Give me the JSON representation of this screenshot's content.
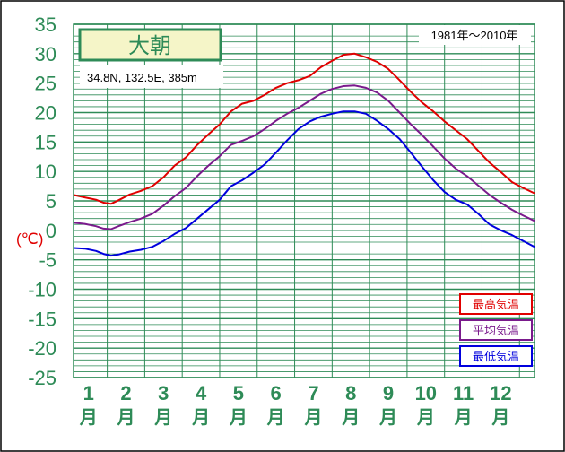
{
  "station": {
    "name": "大朝",
    "location": "34.8N,  132.5E,  385m",
    "period": "1981年〜2010年"
  },
  "y_axis_unit": "(℃)",
  "colors": {
    "grid": "#2e8b57",
    "axis_text": "#2e8b57",
    "unit_text": "#e00000",
    "max": "#e00000",
    "mean": "#7a1a8c",
    "min": "#0000dd",
    "title_bg": "#f5f5c8"
  },
  "chart_data": {
    "type": "line",
    "title": "大朝",
    "xlabel": "",
    "ylabel": "(℃)",
    "ylim": [
      -25,
      35
    ],
    "ytick_step": 5,
    "x_categories": [
      {
        "num": "1",
        "unit": "月"
      },
      {
        "num": "2",
        "unit": "月"
      },
      {
        "num": "3",
        "unit": "月"
      },
      {
        "num": "4",
        "unit": "月"
      },
      {
        "num": "5",
        "unit": "月"
      },
      {
        "num": "6",
        "unit": "月"
      },
      {
        "num": "7",
        "unit": "月"
      },
      {
        "num": "8",
        "unit": "月"
      },
      {
        "num": "9",
        "unit": "月"
      },
      {
        "num": "10",
        "unit": "月"
      },
      {
        "num": "11",
        "unit": "月"
      },
      {
        "num": "12",
        "unit": "月"
      }
    ],
    "x_range_months": [
      0.1,
      12.4
    ],
    "grid": true,
    "legend_position": "bottom-right",
    "series": [
      {
        "name": "最高気温",
        "color": "#e00000",
        "points": [
          [
            0.1,
            6.0
          ],
          [
            0.4,
            5.6
          ],
          [
            0.7,
            5.2
          ],
          [
            0.9,
            4.7
          ],
          [
            1.1,
            4.5
          ],
          [
            1.3,
            5.1
          ],
          [
            1.6,
            6.1
          ],
          [
            1.9,
            6.7
          ],
          [
            2.2,
            7.5
          ],
          [
            2.5,
            9.0
          ],
          [
            2.8,
            11.0
          ],
          [
            3.1,
            12.4
          ],
          [
            3.4,
            14.5
          ],
          [
            3.7,
            16.3
          ],
          [
            4.0,
            18.0
          ],
          [
            4.3,
            20.2
          ],
          [
            4.6,
            21.5
          ],
          [
            4.9,
            22.0
          ],
          [
            5.2,
            23.0
          ],
          [
            5.5,
            24.2
          ],
          [
            5.8,
            25.0
          ],
          [
            6.1,
            25.5
          ],
          [
            6.4,
            26.2
          ],
          [
            6.7,
            27.7
          ],
          [
            7.0,
            28.8
          ],
          [
            7.3,
            29.8
          ],
          [
            7.6,
            30.0
          ],
          [
            7.9,
            29.4
          ],
          [
            8.2,
            28.6
          ],
          [
            8.5,
            27.4
          ],
          [
            8.8,
            25.5
          ],
          [
            9.1,
            23.5
          ],
          [
            9.4,
            21.7
          ],
          [
            9.7,
            20.2
          ],
          [
            10.0,
            18.5
          ],
          [
            10.3,
            17.0
          ],
          [
            10.6,
            15.5
          ],
          [
            10.9,
            13.5
          ],
          [
            11.2,
            11.5
          ],
          [
            11.5,
            9.9
          ],
          [
            11.8,
            8.2
          ],
          [
            12.1,
            7.2
          ],
          [
            12.4,
            6.3
          ]
        ]
      },
      {
        "name": "平均気温",
        "color": "#7a1a8c",
        "points": [
          [
            0.1,
            1.3
          ],
          [
            0.4,
            1.1
          ],
          [
            0.7,
            0.7
          ],
          [
            0.9,
            0.3
          ],
          [
            1.1,
            0.2
          ],
          [
            1.3,
            0.7
          ],
          [
            1.6,
            1.4
          ],
          [
            1.9,
            2.0
          ],
          [
            2.2,
            2.8
          ],
          [
            2.5,
            4.2
          ],
          [
            2.8,
            5.8
          ],
          [
            3.1,
            7.2
          ],
          [
            3.4,
            9.2
          ],
          [
            3.7,
            11.0
          ],
          [
            4.0,
            12.6
          ],
          [
            4.3,
            14.5
          ],
          [
            4.6,
            15.2
          ],
          [
            4.9,
            16.0
          ],
          [
            5.2,
            17.2
          ],
          [
            5.5,
            18.6
          ],
          [
            5.8,
            19.8
          ],
          [
            6.1,
            20.8
          ],
          [
            6.4,
            22.0
          ],
          [
            6.7,
            23.2
          ],
          [
            7.0,
            24.0
          ],
          [
            7.3,
            24.5
          ],
          [
            7.6,
            24.6
          ],
          [
            7.9,
            24.2
          ],
          [
            8.2,
            23.4
          ],
          [
            8.5,
            22.0
          ],
          [
            8.8,
            20.0
          ],
          [
            9.1,
            18.0
          ],
          [
            9.4,
            16.2
          ],
          [
            9.7,
            14.2
          ],
          [
            10.0,
            12.2
          ],
          [
            10.3,
            10.5
          ],
          [
            10.6,
            9.2
          ],
          [
            10.9,
            7.6
          ],
          [
            11.2,
            6.0
          ],
          [
            11.5,
            4.7
          ],
          [
            11.8,
            3.5
          ],
          [
            12.1,
            2.5
          ],
          [
            12.4,
            1.6
          ]
        ]
      },
      {
        "name": "最低気温",
        "color": "#0000dd",
        "points": [
          [
            0.1,
            -3.0
          ],
          [
            0.4,
            -3.1
          ],
          [
            0.7,
            -3.5
          ],
          [
            0.9,
            -4.0
          ],
          [
            1.1,
            -4.3
          ],
          [
            1.3,
            -4.1
          ],
          [
            1.6,
            -3.6
          ],
          [
            1.9,
            -3.3
          ],
          [
            2.2,
            -2.8
          ],
          [
            2.5,
            -1.8
          ],
          [
            2.8,
            -0.6
          ],
          [
            3.1,
            0.4
          ],
          [
            3.4,
            2.0
          ],
          [
            3.7,
            3.6
          ],
          [
            4.0,
            5.2
          ],
          [
            4.3,
            7.5
          ],
          [
            4.6,
            8.5
          ],
          [
            4.9,
            9.8
          ],
          [
            5.2,
            11.2
          ],
          [
            5.5,
            13.2
          ],
          [
            5.8,
            15.3
          ],
          [
            6.1,
            17.2
          ],
          [
            6.4,
            18.5
          ],
          [
            6.7,
            19.3
          ],
          [
            7.0,
            19.8
          ],
          [
            7.3,
            20.2
          ],
          [
            7.6,
            20.2
          ],
          [
            7.9,
            19.8
          ],
          [
            8.2,
            18.6
          ],
          [
            8.5,
            17.2
          ],
          [
            8.8,
            15.5
          ],
          [
            9.1,
            13.2
          ],
          [
            9.4,
            10.8
          ],
          [
            9.7,
            8.5
          ],
          [
            10.0,
            6.5
          ],
          [
            10.3,
            5.2
          ],
          [
            10.6,
            4.4
          ],
          [
            10.9,
            2.8
          ],
          [
            11.2,
            1.0
          ],
          [
            11.5,
            0.0
          ],
          [
            11.8,
            -0.8
          ],
          [
            12.1,
            -1.8
          ],
          [
            12.4,
            -2.8
          ]
        ]
      }
    ]
  }
}
